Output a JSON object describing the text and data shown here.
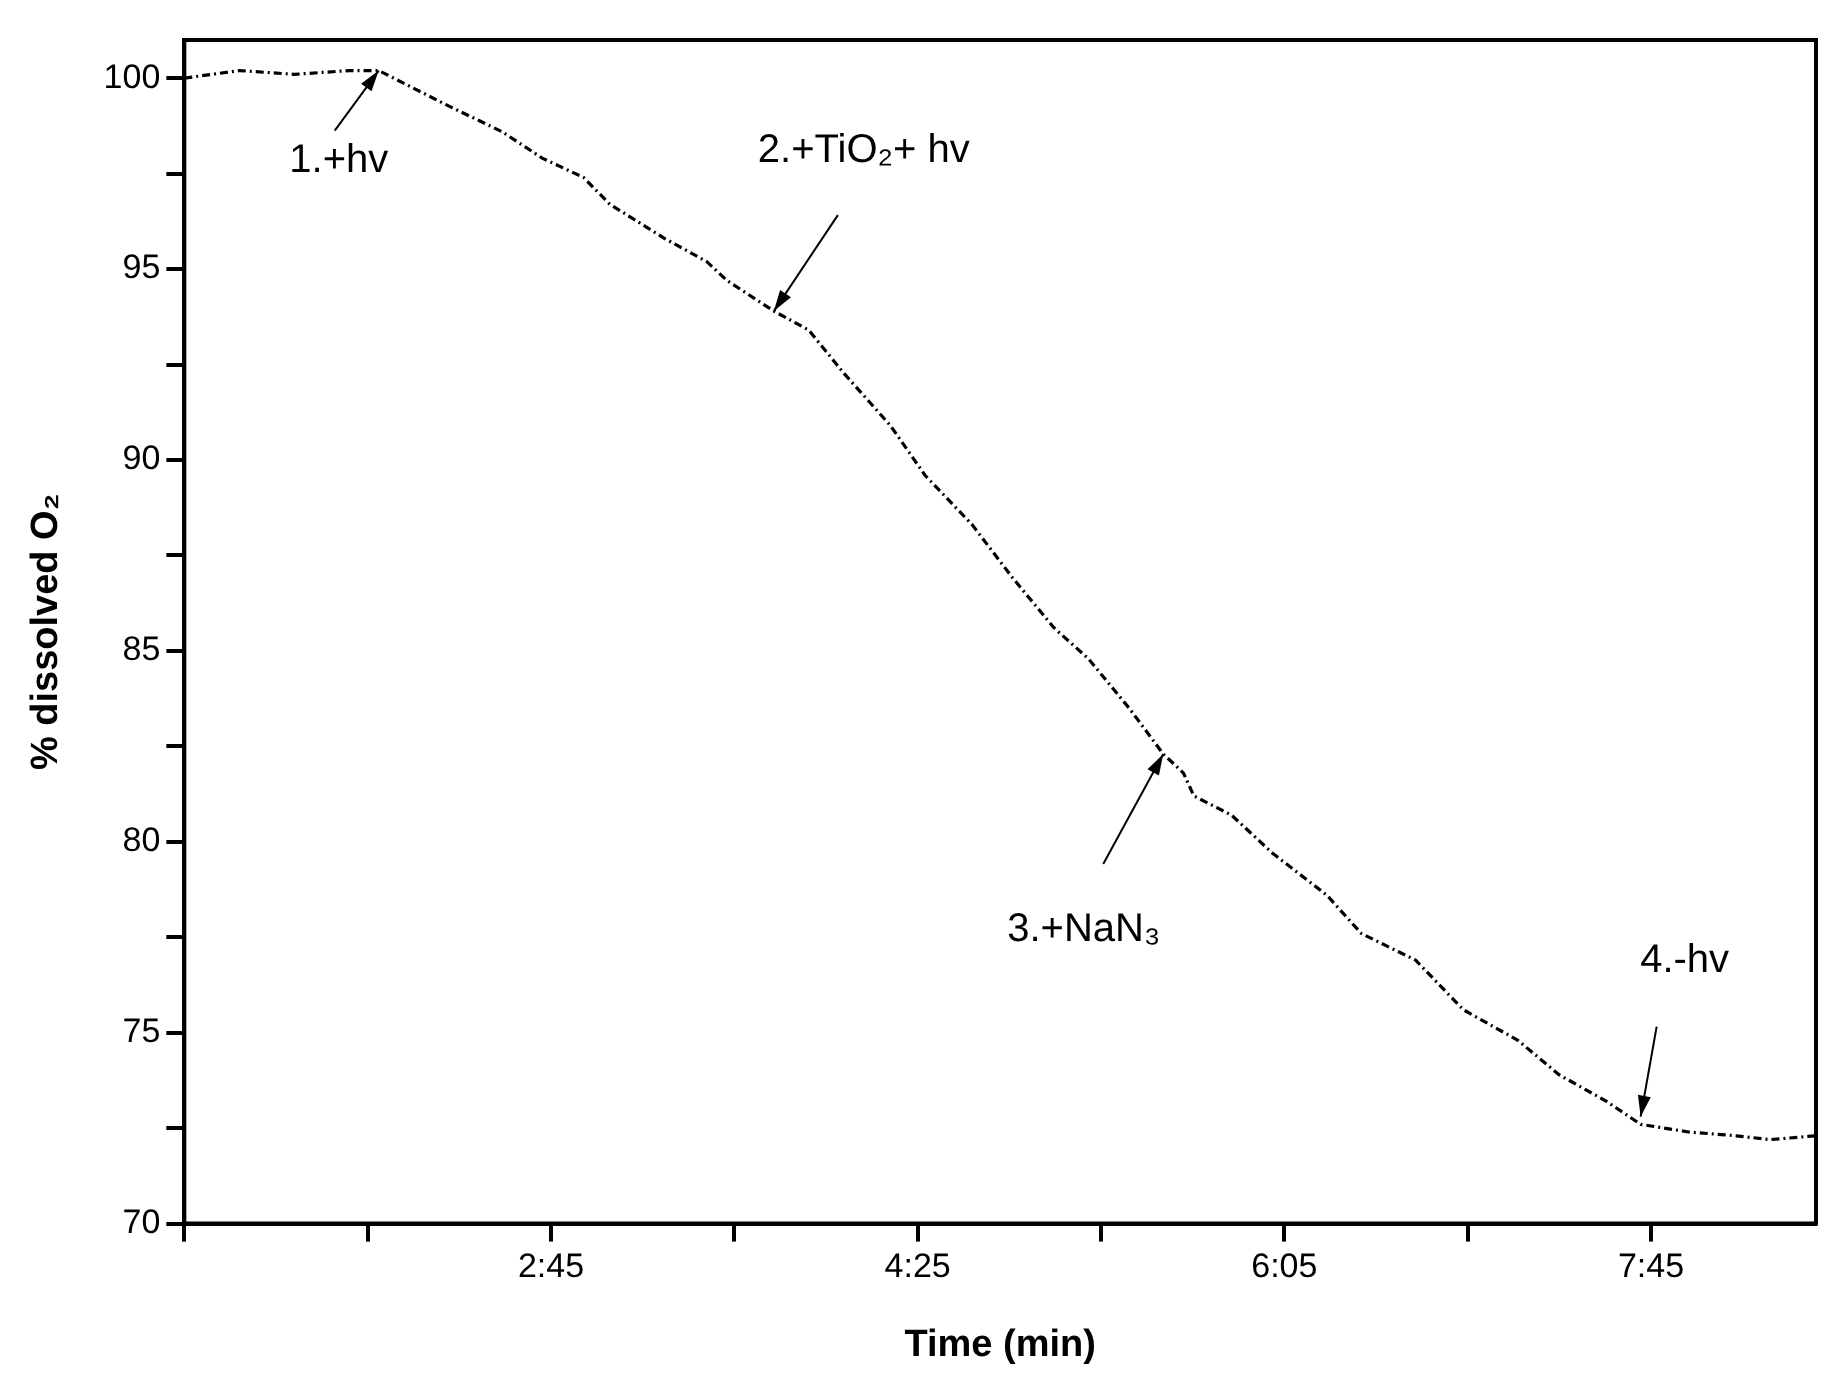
{
  "chart_data": {
    "type": "line",
    "xlabel": "Time (min)",
    "ylabel": "% dissolved O₂",
    "x": [
      1.0833,
      1.333,
      1.583,
      1.833,
      1.967,
      2.275,
      2.527,
      2.712,
      2.898,
      3.017,
      3.267,
      3.457,
      3.55,
      3.763,
      3.922,
      4.077,
      4.293,
      4.45,
      4.665,
      4.85,
      5.037,
      5.192,
      5.378,
      5.533,
      5.625,
      5.672,
      5.843,
      6.03,
      6.277,
      6.433,
      6.68,
      6.897,
      7.145,
      7.332,
      7.548,
      7.703,
      7.92,
      8.137,
      8.292,
      8.497
    ],
    "series": [
      {
        "color": "#000000",
        "values": [
          100.0,
          100.2,
          100.1,
          100.2,
          100.2,
          99.3,
          98.6,
          97.9,
          97.4,
          96.7,
          95.8,
          95.2,
          94.7,
          93.9,
          93.4,
          92.3,
          90.9,
          89.6,
          88.3,
          86.9,
          85.6,
          84.8,
          83.5,
          82.3,
          81.8,
          81.2,
          80.7,
          79.7,
          78.6,
          77.6,
          76.9,
          75.6,
          74.8,
          73.9,
          73.2,
          72.6,
          72.4,
          72.3,
          72.2,
          72.3
        ]
      }
    ],
    "xlim": [
      1.0833,
      8.5
    ],
    "xticks": [
      {
        "value": 1.0833,
        "label": null
      },
      {
        "value": 1.9167,
        "label": null
      },
      {
        "value": 2.75,
        "label": "2:45"
      },
      {
        "value": 3.5833,
        "label": null
      },
      {
        "value": 4.4167,
        "label": "4:25"
      },
      {
        "value": 5.25,
        "label": null
      },
      {
        "value": 6.0833,
        "label": "6:05"
      },
      {
        "value": 6.9167,
        "label": null
      },
      {
        "value": 7.75,
        "label": "7:45"
      }
    ],
    "ylim": [
      70,
      101
    ],
    "yticks": [
      70,
      {
        "value": 72.5,
        "label": null
      },
      75,
      {
        "value": 77.5,
        "label": null
      },
      80,
      {
        "value": 82.5,
        "label": null
      },
      85,
      {
        "value": 87.5,
        "label": null
      },
      90,
      {
        "value": 92.5,
        "label": null
      },
      95,
      {
        "value": 97.5,
        "label": null
      },
      100
    ],
    "annotations": [
      {
        "text": "1.+hv",
        "x": 1.967,
        "y": 100.2
      },
      {
        "text": "2.+TiO₂+ hv",
        "x": 3.763,
        "y": 93.9
      },
      {
        "text": "3.+NaN₃",
        "x": 5.533,
        "y": 82.3
      },
      {
        "text": "4.-hv",
        "x": 7.703,
        "y": 72.8
      }
    ],
    "grid": false,
    "legend": false,
    "marker": "none",
    "line_style": "dashed"
  }
}
